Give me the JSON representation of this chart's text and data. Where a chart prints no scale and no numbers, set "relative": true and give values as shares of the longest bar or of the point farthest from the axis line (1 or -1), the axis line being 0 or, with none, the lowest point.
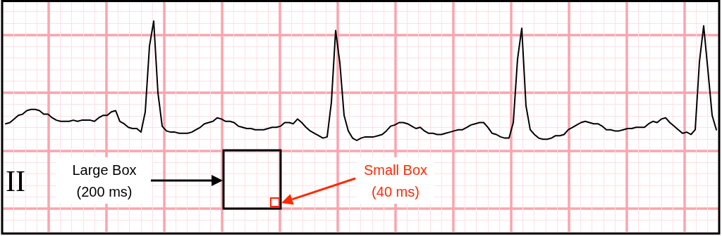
{
  "chart_data": {
    "type": "line",
    "relative": true,
    "grid": true,
    "marker": "none",
    "color": "#000000",
    "categories": [
      null,
      null,
      null,
      null,
      null,
      null,
      null,
      null,
      null,
      null,
      null,
      null,
      null,
      null,
      null,
      null,
      null,
      null,
      null,
      null,
      null,
      null,
      null,
      null,
      null,
      null,
      null,
      null,
      null,
      null,
      null,
      null,
      null,
      null,
      null,
      null,
      null,
      null,
      null,
      null,
      null,
      null,
      null,
      null,
      null,
      null,
      null,
      null,
      null,
      null,
      null,
      null,
      null,
      null,
      null,
      null,
      null,
      null,
      null,
      null,
      null,
      null,
      null,
      null,
      null,
      null,
      null,
      null,
      null,
      null,
      null,
      null,
      null,
      null,
      null,
      null,
      null,
      null,
      null,
      null,
      null,
      null,
      null,
      null,
      null,
      null,
      null,
      null,
      null,
      null,
      null,
      null,
      null,
      null,
      null,
      null,
      null,
      null,
      null,
      null,
      null,
      null,
      null,
      null,
      null,
      null,
      null,
      null,
      null,
      null,
      null,
      null,
      null,
      null,
      null,
      null,
      null,
      null,
      null,
      null,
      null,
      null,
      null,
      null,
      null,
      null,
      null,
      null,
      null,
      null,
      null,
      null,
      null,
      null,
      null,
      null,
      null,
      null,
      null,
      null,
      null,
      null,
      null,
      null,
      null,
      null,
      null,
      null,
      null,
      null,
      null,
      null,
      null,
      null,
      null,
      null,
      null,
      null,
      null,
      null,
      null,
      null,
      null,
      null,
      null,
      null,
      null,
      null,
      null
    ],
    "values": [
      0.14,
      0.15,
      0.18,
      0.21,
      0.22,
      0.25,
      0.26,
      0.26,
      0.25,
      0.22,
      0.22,
      0.19,
      0.17,
      0.16,
      0.16,
      0.16,
      0.17,
      0.16,
      0.17,
      0.17,
      0.17,
      0.16,
      0.19,
      0.21,
      0.21,
      0.24,
      0.25,
      0.16,
      0.14,
      0.11,
      0.1,
      0.1,
      0.07,
      0.24,
      0.79,
      1,
      0.4,
      0.12,
      0.08,
      0.07,
      0.07,
      0.06,
      0.06,
      0.06,
      0.07,
      0.09,
      0.11,
      0.14,
      0.15,
      0.16,
      0.19,
      0.18,
      0.16,
      0.16,
      0.15,
      0.12,
      0.11,
      0.1,
      0.1,
      0.09,
      0.09,
      0.09,
      0.1,
      0.11,
      0.11,
      0.12,
      0.15,
      0.15,
      0.14,
      0.18,
      0.15,
      0.11,
      0.08,
      0.06,
      0.04,
      0.02,
      0.03,
      0.32,
      0.92,
      0.65,
      0.21,
      0.08,
      0.02,
      0,
      0.02,
      0.03,
      0.03,
      0.03,
      0.04,
      0.05,
      0.08,
      0.12,
      0.13,
      0.15,
      0.15,
      0.14,
      0.12,
      0.1,
      0.11,
      0.08,
      0.06,
      0.06,
      0.05,
      0.05,
      0.06,
      0.07,
      0.08,
      0.09,
      0.09,
      0.11,
      0.13,
      0.14,
      0.15,
      0.15,
      0.11,
      0.06,
      0.05,
      0.03,
      0.02,
      0.02,
      0.15,
      0.68,
      0.94,
      0.29,
      0.09,
      0.05,
      0.02,
      0.01,
      0.01,
      0.02,
      0.04,
      0.04,
      0.05,
      0.09,
      0.11,
      0.13,
      0.15,
      0.16,
      0.15,
      0.14,
      0.14,
      0.12,
      0.09,
      0.09,
      0.08,
      0.08,
      0.09,
      0.1,
      0.1,
      0.11,
      0.11,
      0.11,
      0.14,
      0.16,
      0.15,
      0.18,
      0.19,
      0.15,
      0.12,
      0.09,
      0.06,
      0.07,
      0.05,
      0.09,
      0.66,
      0.96,
      0.59,
      0.21,
      0.09
    ],
    "annotations": [
      "II",
      "Large Box\n(200 ms)",
      "Small Box\n(40 ms)"
    ]
  }
}
